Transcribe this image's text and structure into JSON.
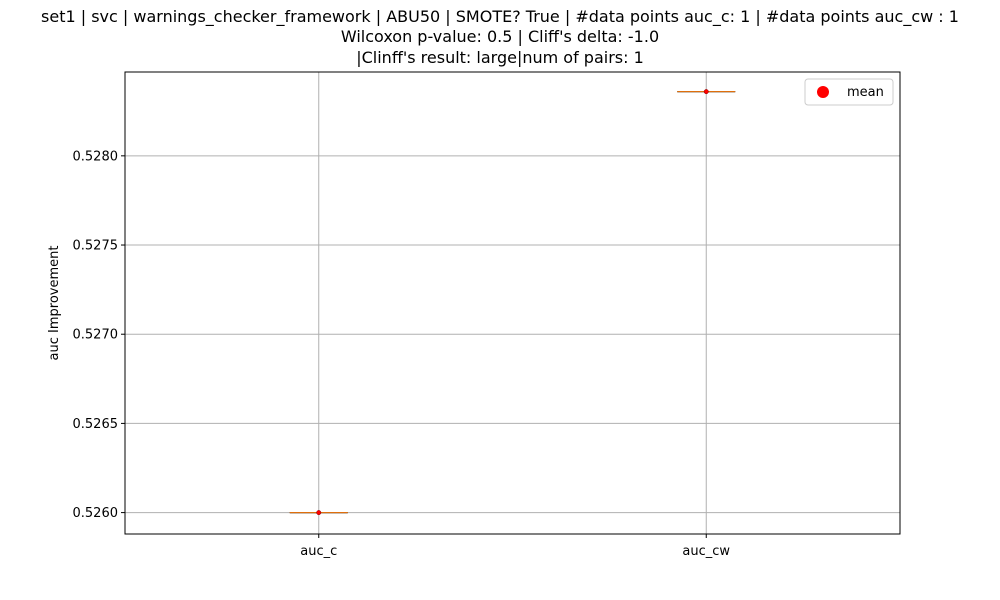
{
  "chart_data": {
    "type": "box",
    "title_lines": [
      "set1 | svc | warnings_checker_framework | ABU50 | SMOTE? True | #data points auc_c: 1 | #data points auc_cw : 1",
      "Wilcoxon p-value: 0.5 | Cliff's delta: -1.0",
      "|Clinff's result: large|num of pairs: 1"
    ],
    "xlabel": "",
    "ylabel": "auc Improvement",
    "categories": [
      "auc_c",
      "auc_cw"
    ],
    "values": [
      0.526,
      0.52836
    ],
    "means": [
      0.526,
      0.52836
    ],
    "ylim": [
      0.52588,
      0.52847
    ],
    "yticks": [
      0.526,
      0.5265,
      0.527,
      0.5275,
      0.528
    ],
    "ytick_labels": [
      "0.5260",
      "0.5265",
      "0.5270",
      "0.5275",
      "0.5280"
    ],
    "grid": true,
    "legend": {
      "placement": "top-right",
      "entries": [
        {
          "label": "mean",
          "marker": "circle",
          "color": "#ff0000"
        }
      ]
    },
    "colors": {
      "median_line": "#ff7f0e",
      "mean_marker": "#ff0000",
      "grid": "#b0b0b0"
    }
  }
}
